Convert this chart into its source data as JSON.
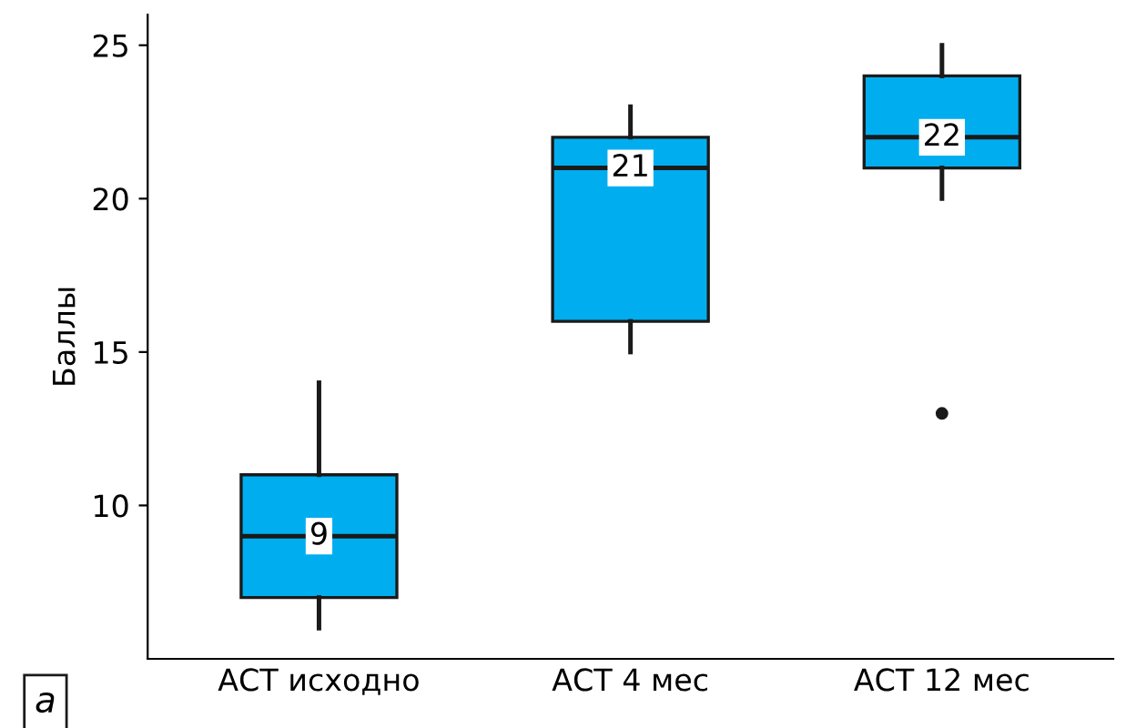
{
  "chart_data": {
    "type": "box",
    "ylabel": "Баллы",
    "categories": [
      "АСТ исходно",
      "АСТ 4 мес",
      "АСТ 12 мес"
    ],
    "boxes": [
      {
        "low": 6,
        "q1": 7,
        "median": 9,
        "q3": 11,
        "high": 14
      },
      {
        "low": 15,
        "q1": 16,
        "median": 21,
        "q3": 22,
        "high": 23
      },
      {
        "low": 20,
        "q1": 21,
        "median": 22,
        "q3": 24,
        "high": 25,
        "outliers": [
          13
        ]
      }
    ],
    "color": "#00aeef",
    "ylim": [
      5,
      26
    ],
    "yticks": [
      10,
      15,
      20,
      25
    ],
    "grid": false,
    "annotations": [
      {
        "text": "9",
        "x": "АСТ исходно",
        "y": 9
      },
      {
        "text": "21",
        "x": "АСТ 4 мес",
        "y": 21
      },
      {
        "text": "22",
        "x": "АСТ 12 мес",
        "y": 22
      },
      "а"
    ]
  }
}
